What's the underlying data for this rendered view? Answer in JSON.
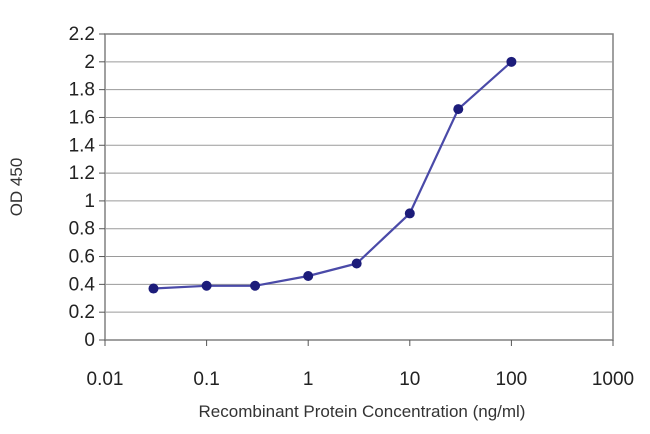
{
  "chart_data": {
    "type": "line",
    "title": "",
    "xlabel": "Recombinant Protein Concentration (ng/ml)",
    "ylabel": "OD 450",
    "x_scale": "log",
    "xlim": [
      0.01,
      1000
    ],
    "ylim": [
      0,
      2.2
    ],
    "x_ticks": [
      "0.01",
      "0.1",
      "1",
      "10",
      "100",
      "1000"
    ],
    "y_ticks": [
      "0",
      "0.2",
      "0.4",
      "0.6",
      "0.8",
      "1",
      "1.2",
      "1.4",
      "1.6",
      "1.8",
      "2",
      "2.2"
    ],
    "grid": "horizontal",
    "legend": "none",
    "series": [
      {
        "color": "#1c1c7a",
        "x": [
          0.03,
          0.1,
          0.3,
          1,
          3,
          10,
          30,
          100
        ],
        "y": [
          0.37,
          0.39,
          0.39,
          0.46,
          0.55,
          0.91,
          1.66,
          2.0
        ]
      }
    ]
  }
}
